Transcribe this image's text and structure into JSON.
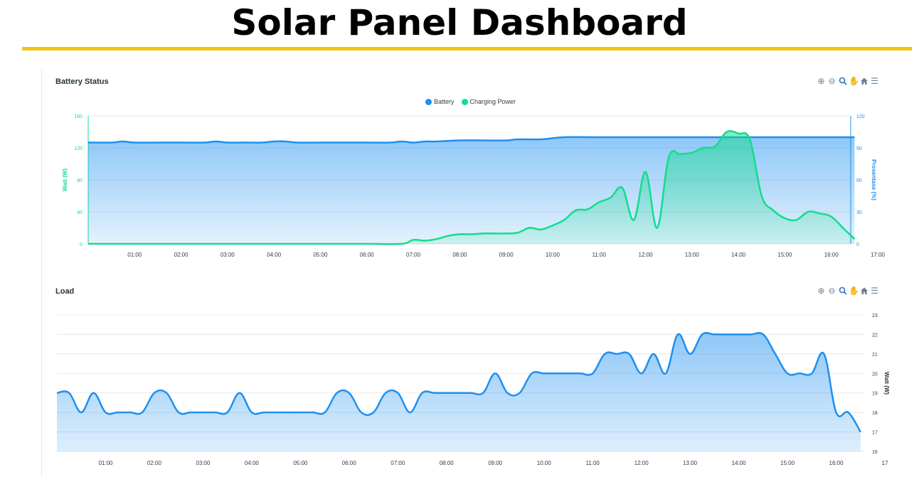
{
  "page": {
    "title": "Solar Panel Dashboard"
  },
  "colors": {
    "accent_rule": "#f1c40f",
    "battery": "#1e90f0",
    "charging": "#12dd8c",
    "load": "#1e90f0"
  },
  "toolbar": {
    "icons": [
      "zoom-in-icon",
      "zoom-out-icon",
      "magnifier-icon",
      "pan-hand-icon",
      "home-icon",
      "menu-icon"
    ]
  },
  "chart_data": [
    {
      "type": "area",
      "title": "Battery Status",
      "legend": [
        "Battery",
        "Charging Power"
      ],
      "legend_position": "top-center",
      "x_ticks": [
        "01:00",
        "02:00",
        "03:00",
        "04:00",
        "05:00",
        "06:00",
        "07:00",
        "08:00",
        "09:00",
        "10:00",
        "11:00",
        "12:00",
        "13:00",
        "14:00",
        "15:00",
        "16:00",
        "17:00"
      ],
      "xlim": [
        0.0,
        17.0
      ],
      "y_left": {
        "label": "Watt (W)",
        "ticks": [
          "0",
          "40",
          "80",
          "120",
          "160"
        ],
        "ylim": [
          0,
          160
        ]
      },
      "y_right": {
        "label": "Prosentase (%)",
        "ticks": [
          "0",
          "30",
          "60",
          "90",
          "120"
        ],
        "ylim": [
          0,
          120
        ]
      },
      "grid": true,
      "series": [
        {
          "name": "Battery",
          "axis": "right",
          "x": [
            0.0,
            0.5,
            0.75,
            1.0,
            1.5,
            2.0,
            2.5,
            2.75,
            3.0,
            3.5,
            3.75,
            4.0,
            4.25,
            4.5,
            5.0,
            5.5,
            6.0,
            6.5,
            6.75,
            7.0,
            7.25,
            7.5,
            8.0,
            8.5,
            9.0,
            9.25,
            9.75,
            10.25,
            11.0,
            12.0,
            13.0,
            14.0,
            15.0,
            16.0,
            16.5
          ],
          "values": [
            95,
            95,
            96,
            95,
            95,
            95,
            95,
            96,
            95,
            95,
            95,
            96,
            96,
            95,
            95,
            95,
            95,
            95,
            96,
            95,
            96,
            96,
            97,
            97,
            97,
            98,
            98,
            100,
            100,
            100,
            100,
            100,
            100,
            100,
            100
          ]
        },
        {
          "name": "Charging Power",
          "axis": "left",
          "x": [
            0.0,
            1.0,
            2.0,
            3.0,
            4.0,
            5.0,
            6.0,
            6.75,
            7.0,
            7.25,
            7.5,
            7.75,
            8.0,
            8.25,
            8.5,
            8.75,
            9.0,
            9.25,
            9.5,
            9.75,
            10.0,
            10.25,
            10.5,
            10.75,
            11.0,
            11.25,
            11.5,
            11.75,
            12.0,
            12.25,
            12.5,
            12.75,
            13.0,
            13.25,
            13.5,
            13.75,
            14.0,
            14.25,
            14.5,
            14.75,
            15.0,
            15.25,
            15.5,
            15.75,
            16.0,
            16.25,
            16.5
          ],
          "values": [
            0,
            0,
            0,
            0,
            0,
            0,
            0,
            0,
            5,
            4,
            6,
            10,
            12,
            12,
            13,
            13,
            13,
            14,
            20,
            18,
            23,
            30,
            42,
            43,
            52,
            58,
            70,
            30,
            90,
            20,
            108,
            112,
            114,
            120,
            122,
            140,
            138,
            130,
            60,
            42,
            32,
            30,
            40,
            38,
            34,
            20,
            6
          ]
        }
      ]
    },
    {
      "type": "area",
      "title": "Load",
      "x_ticks": [
        "01:00",
        "02:00",
        "03:00",
        "04:00",
        "05:00",
        "06:00",
        "07:00",
        "08:00",
        "09:00",
        "10:00",
        "11:00",
        "12:00",
        "13:00",
        "14:00",
        "15:00",
        "16:00",
        "17"
      ],
      "xlim": [
        0.0,
        17.0
      ],
      "y_right": {
        "label": "Watt (W)",
        "ticks": [
          "16",
          "17",
          "18",
          "19",
          "20",
          "21",
          "22",
          "23"
        ],
        "ylim": [
          16,
          23
        ]
      },
      "grid": true,
      "series": [
        {
          "name": "Load",
          "x": [
            0.0,
            0.25,
            0.5,
            0.75,
            1.0,
            1.25,
            1.5,
            1.75,
            2.0,
            2.25,
            2.5,
            2.75,
            3.0,
            3.25,
            3.5,
            3.75,
            4.0,
            4.25,
            4.5,
            4.75,
            5.0,
            5.25,
            5.5,
            5.75,
            6.0,
            6.25,
            6.5,
            6.75,
            7.0,
            7.25,
            7.5,
            7.75,
            8.0,
            8.25,
            8.5,
            8.75,
            9.0,
            9.25,
            9.5,
            9.75,
            10.0,
            10.25,
            10.5,
            10.75,
            11.0,
            11.25,
            11.5,
            11.75,
            12.0,
            12.25,
            12.5,
            12.75,
            13.0,
            13.25,
            13.5,
            13.75,
            14.0,
            14.25,
            14.5,
            14.75,
            15.0,
            15.25,
            15.5,
            15.75,
            16.0,
            16.25,
            16.5
          ],
          "values": [
            19,
            19,
            18,
            19,
            18,
            18,
            18,
            18,
            19,
            19,
            18,
            18,
            18,
            18,
            18,
            19,
            18,
            18,
            18,
            18,
            18,
            18,
            18,
            19,
            19,
            18,
            18,
            19,
            19,
            18,
            19,
            19,
            19,
            19,
            19,
            19,
            20,
            19,
            19,
            20,
            20,
            20,
            20,
            20,
            20,
            21,
            21,
            21,
            20,
            21,
            20,
            22,
            21,
            22,
            22,
            22,
            22,
            22,
            22,
            21,
            20,
            20,
            20,
            21,
            18,
            18,
            17
          ]
        }
      ]
    }
  ]
}
